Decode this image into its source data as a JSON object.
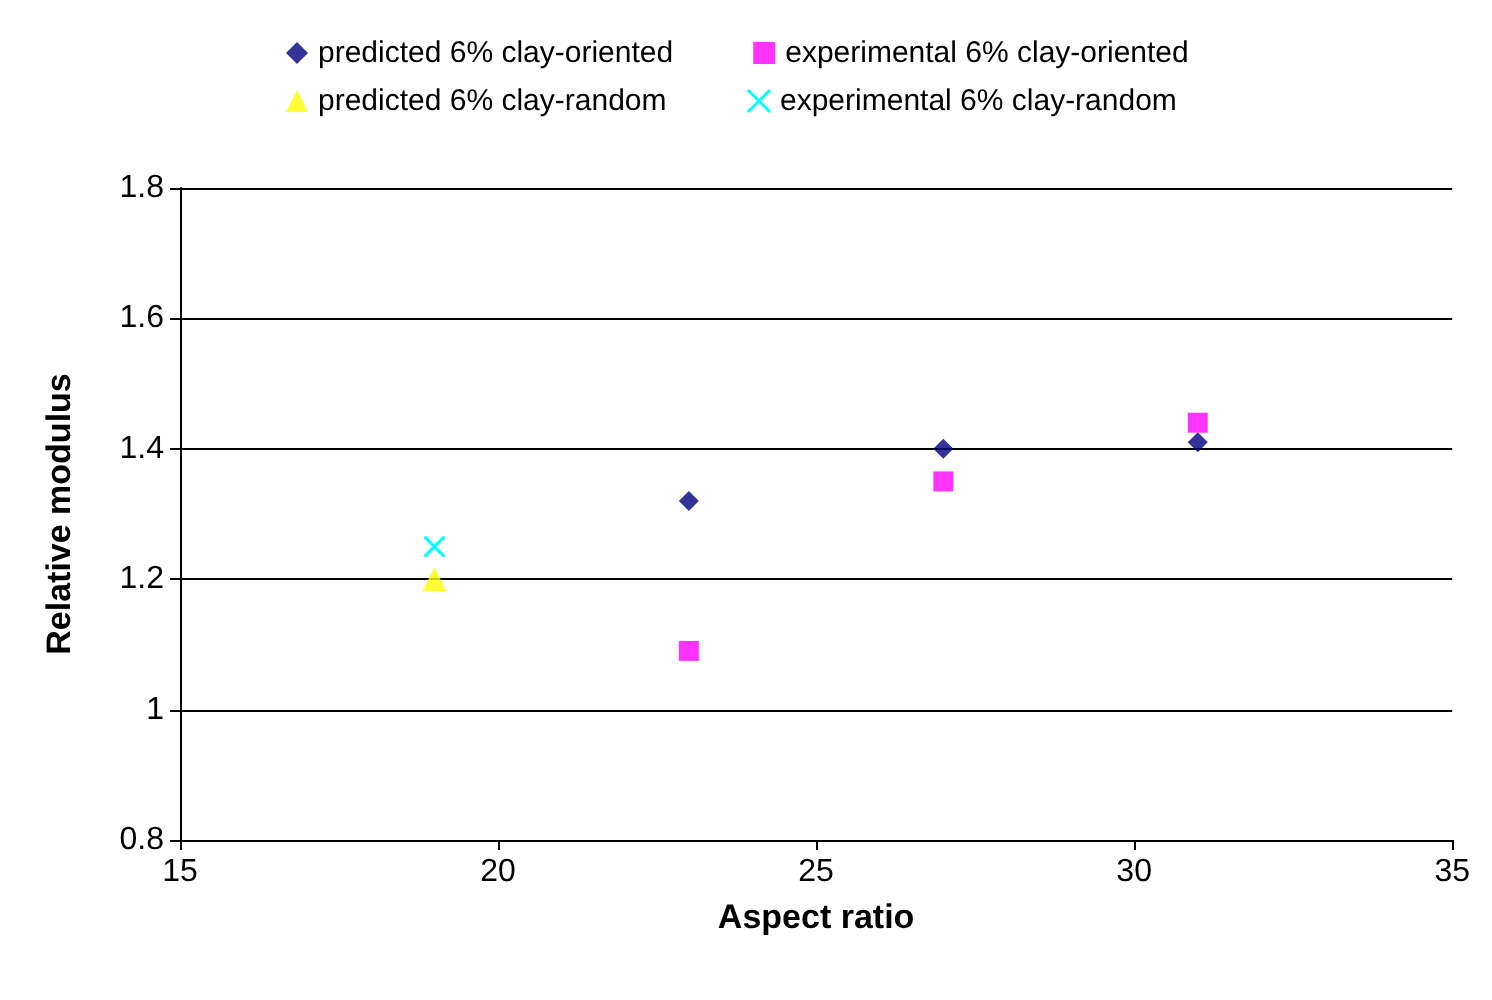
{
  "chart_data": {
    "type": "scatter",
    "xlabel": "Aspect ratio",
    "ylabel": "Relative modulus",
    "series": [
      {
        "name": "predicted 6% clay-oriented",
        "color": "#000080",
        "marker": "diamond",
        "x": [
          23,
          27,
          31
        ],
        "values": [
          1.32,
          1.4,
          1.41
        ]
      },
      {
        "name": "experimental 6% clay-oriented",
        "color": "#ff00ff",
        "marker": "square",
        "x": [
          23,
          27,
          31
        ],
        "values": [
          1.09,
          1.35,
          1.44
        ]
      },
      {
        "name": "predicted 6% clay-random",
        "color": "#ffff00",
        "marker": "triangle",
        "x": [
          19
        ],
        "values": [
          1.2
        ]
      },
      {
        "name": "experimental 6% clay-random",
        "color": "#00ffff",
        "marker": "cross",
        "x": [
          19
        ],
        "values": [
          1.25
        ]
      }
    ],
    "xlim": [
      15,
      35
    ],
    "xticks": [
      15,
      20,
      25,
      30,
      35
    ],
    "ylim": [
      0.8,
      1.8
    ],
    "yticks": [
      0.8,
      1,
      1.2,
      1.4,
      1.6,
      1.8
    ],
    "grid": "y",
    "legend": "top"
  }
}
